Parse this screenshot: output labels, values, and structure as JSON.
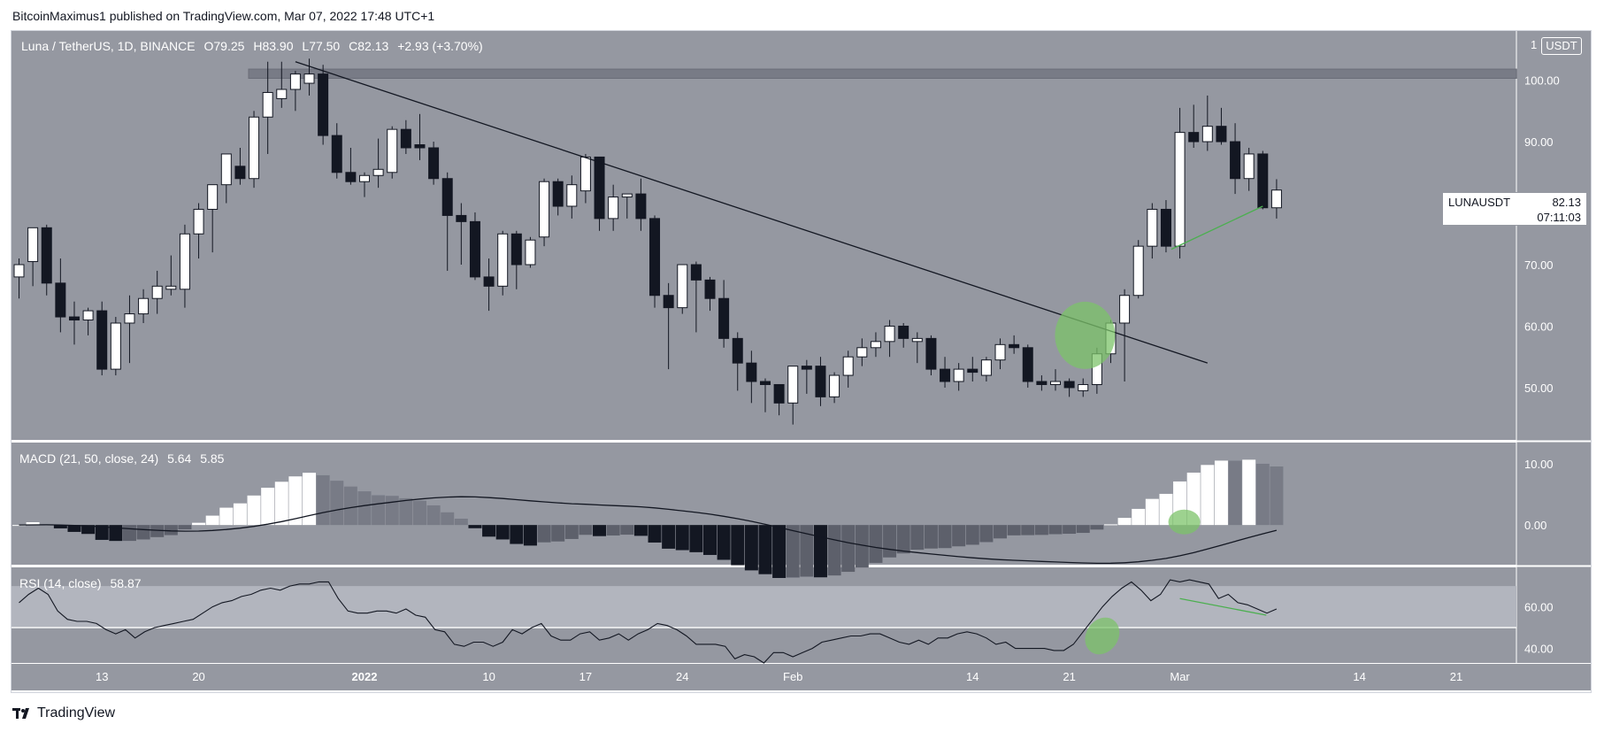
{
  "header": {
    "author": "BitcoinMaximus1",
    "published_text": "published on TradingView.com, Mar 07, 2022 17:48 UTC+1"
  },
  "legend": {
    "symbol": "Luna / TetherUS, 1D, BINANCE",
    "open_label": "O",
    "open": "79.25",
    "high_label": "H",
    "high": "83.90",
    "low_label": "L",
    "low": "77.50",
    "close_label": "C",
    "close": "82.13",
    "change": "+2.93 (+3.70%)"
  },
  "price_tag": {
    "ticker": "LUNAUSDT",
    "price": "82.13",
    "countdown": "07:11:03"
  },
  "unit": {
    "scale": "1",
    "currency": "USDT"
  },
  "macd_legend": {
    "label": "MACD (21, 50, close, 24)",
    "v1": "5.64",
    "v2": "5.85"
  },
  "rsi_legend": {
    "label": "RSI (14, close)",
    "v1": "58.87"
  },
  "footer": {
    "brand": "TradingView"
  },
  "colors": {
    "pane_bg": "#9598a1",
    "up_candle": "#ffffff",
    "down_candle": "#131722",
    "highlight_green": "#7cc36a",
    "divergence_line": "#4caf50",
    "rsi_band": "#b2b5be"
  },
  "chart_data": [
    {
      "type": "candlestick",
      "title": "Luna / TetherUS, 1D, BINANCE",
      "x_axis_labels": [
        {
          "label": "13",
          "date": "2021-12-13"
        },
        {
          "label": "20",
          "date": "2021-12-20"
        },
        {
          "label": "2022",
          "date": "2022-01-01"
        },
        {
          "label": "10",
          "date": "2022-01-10"
        },
        {
          "label": "17",
          "date": "2022-01-17"
        },
        {
          "label": "24",
          "date": "2022-01-24"
        },
        {
          "label": "Feb",
          "date": "2022-02-01"
        },
        {
          "label": "14",
          "date": "2022-02-14"
        },
        {
          "label": "21",
          "date": "2022-02-21"
        },
        {
          "label": "Mar",
          "date": "2022-03-01"
        },
        {
          "label": "14",
          "date": "2022-03-14"
        },
        {
          "label": "21",
          "date": "2022-03-21"
        }
      ],
      "y_ticks": [
        "100.00",
        "90.00",
        "70.00",
        "60.00",
        "50.00"
      ],
      "ylim": [
        41.5,
        108
      ],
      "start_date": "2021-12-07",
      "candles": [
        {
          "o": 68.0,
          "h": 71.0,
          "l": 64.5,
          "c": 70.0
        },
        {
          "o": 70.5,
          "h": 76.0,
          "l": 66.5,
          "c": 76.0
        },
        {
          "o": 76.0,
          "h": 76.5,
          "l": 65.0,
          "c": 67.0
        },
        {
          "o": 67.0,
          "h": 71.0,
          "l": 59.0,
          "c": 61.5
        },
        {
          "o": 61.5,
          "h": 64.0,
          "l": 57.0,
          "c": 61.0
        },
        {
          "o": 61.0,
          "h": 63.0,
          "l": 58.5,
          "c": 62.5
        },
        {
          "o": 62.5,
          "h": 64.0,
          "l": 52.0,
          "c": 53.0
        },
        {
          "o": 53.0,
          "h": 61.5,
          "l": 52.0,
          "c": 60.5
        },
        {
          "o": 60.5,
          "h": 65.0,
          "l": 54.0,
          "c": 62.0
        },
        {
          "o": 62.0,
          "h": 66.0,
          "l": 60.5,
          "c": 64.5
        },
        {
          "o": 64.5,
          "h": 69.0,
          "l": 62.0,
          "c": 66.5
        },
        {
          "o": 66.0,
          "h": 71.5,
          "l": 65.0,
          "c": 66.5
        },
        {
          "o": 66.0,
          "h": 76.5,
          "l": 63.0,
          "c": 75.0
        },
        {
          "o": 75.0,
          "h": 80.0,
          "l": 71.0,
          "c": 79.0
        },
        {
          "o": 79.0,
          "h": 83.0,
          "l": 72.0,
          "c": 83.0
        },
        {
          "o": 83.0,
          "h": 88.0,
          "l": 80.0,
          "c": 88.0
        },
        {
          "o": 86.0,
          "h": 89.0,
          "l": 83.0,
          "c": 84.0
        },
        {
          "o": 84.0,
          "h": 95.0,
          "l": 82.5,
          "c": 94.0
        },
        {
          "o": 94.0,
          "h": 103.0,
          "l": 88.0,
          "c": 98.0
        },
        {
          "o": 97.0,
          "h": 103.0,
          "l": 95.5,
          "c": 98.5
        },
        {
          "o": 98.5,
          "h": 101.5,
          "l": 95.0,
          "c": 101.0
        },
        {
          "o": 99.5,
          "h": 103.5,
          "l": 97.5,
          "c": 101.0
        },
        {
          "o": 101.0,
          "h": 102.5,
          "l": 89.5,
          "c": 91.0
        },
        {
          "o": 91.0,
          "h": 93.0,
          "l": 84.0,
          "c": 85.0
        },
        {
          "o": 85.0,
          "h": 89.0,
          "l": 83.0,
          "c": 83.5
        },
        {
          "o": 83.5,
          "h": 85.0,
          "l": 81.0,
          "c": 84.5
        },
        {
          "o": 84.5,
          "h": 90.5,
          "l": 82.5,
          "c": 85.5
        },
        {
          "o": 85.0,
          "h": 92.5,
          "l": 84.0,
          "c": 92.0
        },
        {
          "o": 92.0,
          "h": 93.5,
          "l": 88.0,
          "c": 89.0
        },
        {
          "o": 89.5,
          "h": 94.5,
          "l": 87.0,
          "c": 89.0
        },
        {
          "o": 89.0,
          "h": 90.0,
          "l": 83.0,
          "c": 84.0
        },
        {
          "o": 84.0,
          "h": 85.0,
          "l": 69.0,
          "c": 78.0
        },
        {
          "o": 78.0,
          "h": 80.0,
          "l": 70.0,
          "c": 77.0
        },
        {
          "o": 77.0,
          "h": 78.5,
          "l": 67.5,
          "c": 68.0
        },
        {
          "o": 68.0,
          "h": 71.0,
          "l": 62.5,
          "c": 66.5
        },
        {
          "o": 66.5,
          "h": 75.5,
          "l": 65.0,
          "c": 75.0
        },
        {
          "o": 75.0,
          "h": 75.5,
          "l": 66.0,
          "c": 70.0
        },
        {
          "o": 70.0,
          "h": 74.5,
          "l": 69.5,
          "c": 74.0
        },
        {
          "o": 74.5,
          "h": 84.0,
          "l": 73.0,
          "c": 83.5
        },
        {
          "o": 83.5,
          "h": 84.0,
          "l": 78.0,
          "c": 79.5
        },
        {
          "o": 79.5,
          "h": 84.5,
          "l": 77.5,
          "c": 83.0
        },
        {
          "o": 82.0,
          "h": 88.0,
          "l": 80.0,
          "c": 87.5
        },
        {
          "o": 87.5,
          "h": 87.5,
          "l": 75.5,
          "c": 77.5
        },
        {
          "o": 77.5,
          "h": 83.0,
          "l": 75.5,
          "c": 81.0
        },
        {
          "o": 81.0,
          "h": 81.5,
          "l": 77.5,
          "c": 81.5
        },
        {
          "o": 81.5,
          "h": 84.0,
          "l": 75.5,
          "c": 77.5
        },
        {
          "o": 77.5,
          "h": 78.0,
          "l": 63.0,
          "c": 65.0
        },
        {
          "o": 65.0,
          "h": 67.0,
          "l": 53.0,
          "c": 63.0
        },
        {
          "o": 63.0,
          "h": 70.0,
          "l": 62.0,
          "c": 70.0
        },
        {
          "o": 70.0,
          "h": 70.5,
          "l": 59.0,
          "c": 67.5
        },
        {
          "o": 67.5,
          "h": 68.0,
          "l": 62.5,
          "c": 64.5
        },
        {
          "o": 64.5,
          "h": 67.5,
          "l": 56.5,
          "c": 58.0
        },
        {
          "o": 58.0,
          "h": 59.0,
          "l": 49.5,
          "c": 54.0
        },
        {
          "o": 54.0,
          "h": 56.0,
          "l": 47.5,
          "c": 51.0
        },
        {
          "o": 51.0,
          "h": 51.5,
          "l": 46.0,
          "c": 50.5
        },
        {
          "o": 50.5,
          "h": 50.5,
          "l": 45.5,
          "c": 47.5
        },
        {
          "o": 47.5,
          "h": 53.5,
          "l": 44.0,
          "c": 53.5
        },
        {
          "o": 53.5,
          "h": 54.5,
          "l": 49.0,
          "c": 53.0
        },
        {
          "o": 53.5,
          "h": 55.0,
          "l": 47.0,
          "c": 48.5
        },
        {
          "o": 48.5,
          "h": 52.5,
          "l": 47.5,
          "c": 52.0
        },
        {
          "o": 52.0,
          "h": 56.0,
          "l": 50.0,
          "c": 55.0
        },
        {
          "o": 55.0,
          "h": 58.0,
          "l": 53.5,
          "c": 56.5
        },
        {
          "o": 56.5,
          "h": 59.0,
          "l": 55.0,
          "c": 57.5
        },
        {
          "o": 57.5,
          "h": 61.0,
          "l": 55.0,
          "c": 60.0
        },
        {
          "o": 60.0,
          "h": 60.5,
          "l": 56.5,
          "c": 58.0
        },
        {
          "o": 57.5,
          "h": 59.0,
          "l": 54.0,
          "c": 58.0
        },
        {
          "o": 58.0,
          "h": 58.5,
          "l": 52.0,
          "c": 53.0
        },
        {
          "o": 53.0,
          "h": 55.0,
          "l": 50.0,
          "c": 51.0
        },
        {
          "o": 51.0,
          "h": 54.0,
          "l": 49.5,
          "c": 53.0
        },
        {
          "o": 53.0,
          "h": 55.0,
          "l": 51.0,
          "c": 52.5
        },
        {
          "o": 52.0,
          "h": 55.0,
          "l": 51.0,
          "c": 54.5
        },
        {
          "o": 54.5,
          "h": 58.0,
          "l": 53.0,
          "c": 57.0
        },
        {
          "o": 57.0,
          "h": 58.5,
          "l": 55.5,
          "c": 56.5
        },
        {
          "o": 56.5,
          "h": 57.0,
          "l": 50.0,
          "c": 51.0
        },
        {
          "o": 51.0,
          "h": 52.0,
          "l": 49.5,
          "c": 50.5
        },
        {
          "o": 50.5,
          "h": 53.0,
          "l": 49.5,
          "c": 51.0
        },
        {
          "o": 51.0,
          "h": 51.5,
          "l": 48.5,
          "c": 50.0
        },
        {
          "o": 49.5,
          "h": 51.5,
          "l": 48.5,
          "c": 50.5
        },
        {
          "o": 50.5,
          "h": 56.5,
          "l": 49.0,
          "c": 55.5
        },
        {
          "o": 55.5,
          "h": 61.0,
          "l": 54.0,
          "c": 60.5
        },
        {
          "o": 60.5,
          "h": 66.0,
          "l": 51.0,
          "c": 65.0
        },
        {
          "o": 65.0,
          "h": 74.0,
          "l": 64.5,
          "c": 73.0
        },
        {
          "o": 73.0,
          "h": 80.0,
          "l": 71.0,
          "c": 79.0
        },
        {
          "o": 79.0,
          "h": 80.5,
          "l": 72.0,
          "c": 73.0
        },
        {
          "o": 73.0,
          "h": 95.5,
          "l": 71.0,
          "c": 91.5
        },
        {
          "o": 91.5,
          "h": 96.0,
          "l": 89.0,
          "c": 90.0
        },
        {
          "o": 90.0,
          "h": 97.5,
          "l": 88.5,
          "c": 92.5
        },
        {
          "o": 92.5,
          "h": 95.5,
          "l": 89.5,
          "c": 90.0
        },
        {
          "o": 90.0,
          "h": 93.0,
          "l": 81.5,
          "c": 84.0
        },
        {
          "o": 84.0,
          "h": 89.0,
          "l": 82.0,
          "c": 88.0
        },
        {
          "o": 88.0,
          "h": 88.5,
          "l": 79.0,
          "c": 79.25
        },
        {
          "o": 79.25,
          "h": 83.9,
          "l": 77.5,
          "c": 82.13
        }
      ],
      "resistance_zone": [
        100.3,
        101.8
      ],
      "trendline": [
        {
          "date": "2021-12-27",
          "y": 103.0
        },
        {
          "date": "2022-03-03",
          "y": 54.0
        }
      ]
    },
    {
      "type": "bar+line",
      "title": "MACD (21, 50, close, 24)",
      "y_ticks": [
        "10.00",
        "0.00"
      ],
      "ylim": [
        -6.5,
        13.5
      ]
    },
    {
      "type": "line",
      "title": "RSI (14, close)",
      "y_ticks": [
        "60.00",
        "40.00"
      ],
      "ylim": [
        33,
        79
      ],
      "band": [
        50,
        70
      ],
      "values": [
        62,
        66,
        69,
        66,
        58,
        54,
        53,
        53,
        52,
        49,
        47,
        49,
        45,
        48,
        50,
        51,
        52,
        53,
        54,
        57,
        60,
        62,
        63,
        65,
        66,
        68,
        69,
        68,
        70,
        71,
        71,
        72,
        72,
        64,
        58,
        57,
        57,
        58,
        58,
        57,
        59,
        56,
        55,
        49,
        48,
        42,
        41,
        43,
        43,
        41,
        43,
        49,
        47,
        50,
        52,
        46,
        44,
        44,
        47,
        48,
        44,
        45,
        47,
        44,
        47,
        49,
        52,
        51,
        49,
        46,
        42,
        42,
        42,
        41,
        35,
        37,
        36,
        33,
        38,
        38,
        36,
        38,
        40,
        43,
        44,
        45,
        46,
        46,
        47,
        47,
        45,
        43,
        42,
        44,
        42,
        45,
        45,
        47,
        48,
        47,
        45,
        42,
        43,
        40,
        40,
        40,
        40,
        39,
        39,
        42,
        48,
        54,
        60,
        65,
        69,
        72,
        68,
        63,
        66,
        73,
        72,
        73,
        72,
        71,
        64,
        66,
        62,
        61,
        59,
        57,
        59
      ]
    }
  ]
}
